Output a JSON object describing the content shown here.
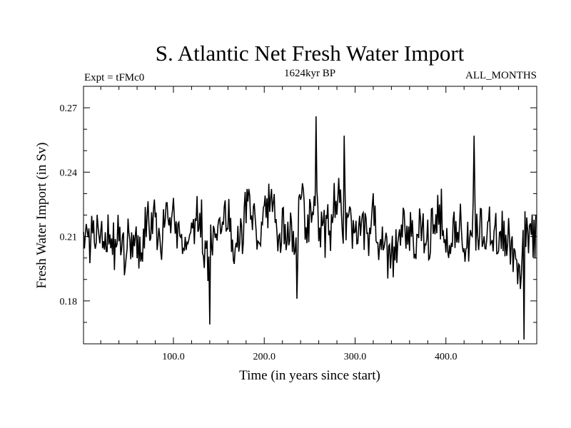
{
  "chart_data": {
    "type": "line",
    "title": "S. Atlantic Net Fresh Water Import",
    "subtitle_left": "Expt = tFMc0",
    "subtitle_center": "1624kyr BP",
    "subtitle_right": "ALL_MONTHS",
    "xlabel": "Time (in years since start)",
    "ylabel": "Fresh Water Import (in Sv)",
    "xlim": [
      1,
      500
    ],
    "ylim": [
      0.16,
      0.28
    ],
    "xticks": [
      100,
      200,
      300,
      400
    ],
    "xtick_labels": [
      "100.0",
      "200.0",
      "300.0",
      "400.0"
    ],
    "yticks": [
      0.18,
      0.21,
      0.24,
      0.27
    ],
    "ytick_labels": [
      "0.18",
      "0.21",
      "0.24",
      "0.27"
    ],
    "series": [
      {
        "name": "Fresh Water Import",
        "x_start": 1,
        "x_step": 5,
        "values": [
          0.205,
          0.213,
          0.208,
          0.218,
          0.214,
          0.212,
          0.206,
          0.209,
          0.211,
          0.203,
          0.213,
          0.204,
          0.208,
          0.2,
          0.219,
          0.212,
          0.217,
          0.202,
          0.216,
          0.221,
          0.214,
          0.209,
          0.211,
          0.203,
          0.215,
          0.222,
          0.214,
          0.197,
          0.209,
          0.206,
          0.217,
          0.22,
          0.223,
          0.209,
          0.215,
          0.212,
          0.225,
          0.22,
          0.215,
          0.211,
          0.221,
          0.225,
          0.219,
          0.206,
          0.218,
          0.21,
          0.215,
          0.211,
          0.234,
          0.207,
          0.215,
          0.231,
          0.21,
          0.214,
          0.209,
          0.219,
          0.23,
          0.219,
          0.218,
          0.217,
          0.208,
          0.222,
          0.211,
          0.209,
          0.224,
          0.212,
          0.209,
          0.203,
          0.198,
          0.203,
          0.208,
          0.217,
          0.215,
          0.205,
          0.211,
          0.214,
          0.206,
          0.219,
          0.224,
          0.218,
          0.21,
          0.215,
          0.211,
          0.217,
          0.205,
          0.213,
          0.218,
          0.216,
          0.209,
          0.212,
          0.215,
          0.207,
          0.213,
          0.205,
          0.21,
          0.198,
          0.19,
          0.213,
          0.204,
          0.212
        ]
      }
    ],
    "extremes": [
      {
        "x": 140,
        "y": 0.169
      },
      {
        "x": 236,
        "y": 0.181
      },
      {
        "x": 257,
        "y": 0.266
      },
      {
        "x": 288,
        "y": 0.257
      },
      {
        "x": 431,
        "y": 0.257
      },
      {
        "x": 486,
        "y": 0.162
      }
    ]
  }
}
